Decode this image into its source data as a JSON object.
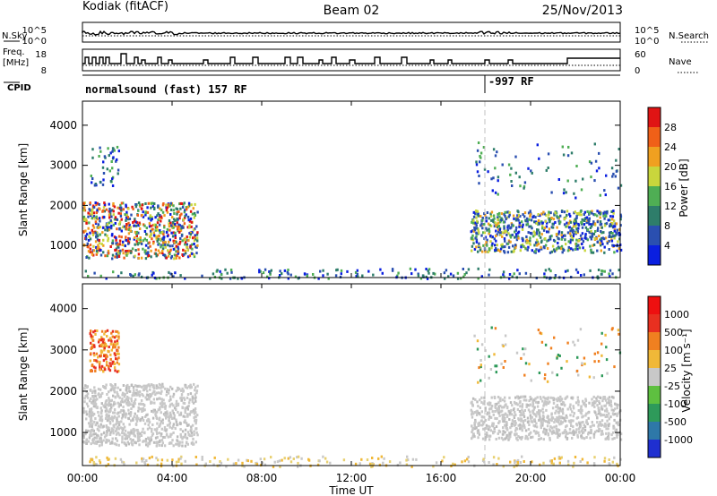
{
  "header": {
    "station": "Kodiak (fitACF)",
    "beam": "Beam 02",
    "date": "25/Nov/2013"
  },
  "top_panels": {
    "nsky": {
      "label": "N.Sky",
      "ticks": [
        "10^5",
        "10^0"
      ]
    },
    "nsearch": {
      "label": "N.Search",
      "ticks": [
        "10^5",
        "10^0"
      ]
    },
    "freq": {
      "label_line1": "Freq.",
      "label_line2": "[MHz]",
      "ticks": [
        "18",
        "8"
      ]
    },
    "nave": {
      "label": "Nave",
      "ticks": [
        "60",
        "0"
      ]
    },
    "cpid": {
      "label": "CPID",
      "programs": [
        "normalsound (fast) 157 RF",
        "-997 RF"
      ]
    }
  },
  "chart_data": [
    {
      "type": "heatmap",
      "name": "power",
      "ylabel": "Slant Range [km]",
      "xlabel": "Time UT",
      "yticks": [
        "1000",
        "2000",
        "3000",
        "4000"
      ],
      "ylim": [
        200,
        4600
      ],
      "colorbar": {
        "label": "Power [dB]",
        "ticks": [
          "4",
          "8",
          "12",
          "16",
          "20",
          "24",
          "28"
        ],
        "colors": [
          "#0a1fe0",
          "#2a4fb0",
          "#2e7d6a",
          "#4fae54",
          "#c9d63c",
          "#f0a020",
          "#f06018",
          "#e01414"
        ]
      },
      "regions": [
        {
          "t0": 0.0,
          "t1": 5.1,
          "r0": 700,
          "r1": 2100,
          "level": "high"
        },
        {
          "t0": 0.3,
          "t1": 1.6,
          "r0": 2500,
          "r1": 3500,
          "level": "low"
        },
        {
          "t0": 0.0,
          "t1": 24.0,
          "r0": 200,
          "r1": 450,
          "level": "low"
        },
        {
          "t0": 17.3,
          "t1": 24.0,
          "r0": 850,
          "r1": 1900,
          "level": "mid"
        },
        {
          "t0": 17.4,
          "t1": 24.0,
          "r0": 2200,
          "r1": 3600,
          "level": "sparse"
        }
      ]
    },
    {
      "type": "heatmap",
      "name": "velocity",
      "ylabel": "Slant Range [km]",
      "xlabel": "Time UT",
      "yticks": [
        "1000",
        "2000",
        "3000",
        "4000"
      ],
      "ylim": [
        200,
        4600
      ],
      "colorbar": {
        "label": "Velocity [m s⁻¹]",
        "ticks": [
          "1000",
          "500",
          "100",
          "25",
          "-25",
          "-100",
          "-500",
          "-1000"
        ],
        "colors": [
          "#1f2fd0",
          "#2e78a8",
          "#2e9a5a",
          "#5ec040",
          "#c8c8c8",
          "#f0b838",
          "#f08020",
          "#e83020",
          "#ee1010"
        ]
      },
      "regions": [
        {
          "t0": 0.0,
          "t1": 5.1,
          "r0": 700,
          "r1": 2200,
          "level": "grey"
        },
        {
          "t0": 0.3,
          "t1": 1.6,
          "r0": 2500,
          "r1": 3500,
          "level": "orange"
        },
        {
          "t0": 0.0,
          "t1": 24.0,
          "r0": 200,
          "r1": 450,
          "level": "yellow"
        },
        {
          "t0": 17.3,
          "t1": 24.0,
          "r0": 850,
          "r1": 1900,
          "level": "grey"
        },
        {
          "t0": 17.4,
          "t1": 24.0,
          "r0": 2200,
          "r1": 3600,
          "level": "sparse"
        }
      ]
    }
  ],
  "x_axis": {
    "label": "Time UT",
    "ticks": [
      "00:00",
      "04:00",
      "08:00",
      "12:00",
      "16:00",
      "20:00",
      "00:00"
    ]
  }
}
